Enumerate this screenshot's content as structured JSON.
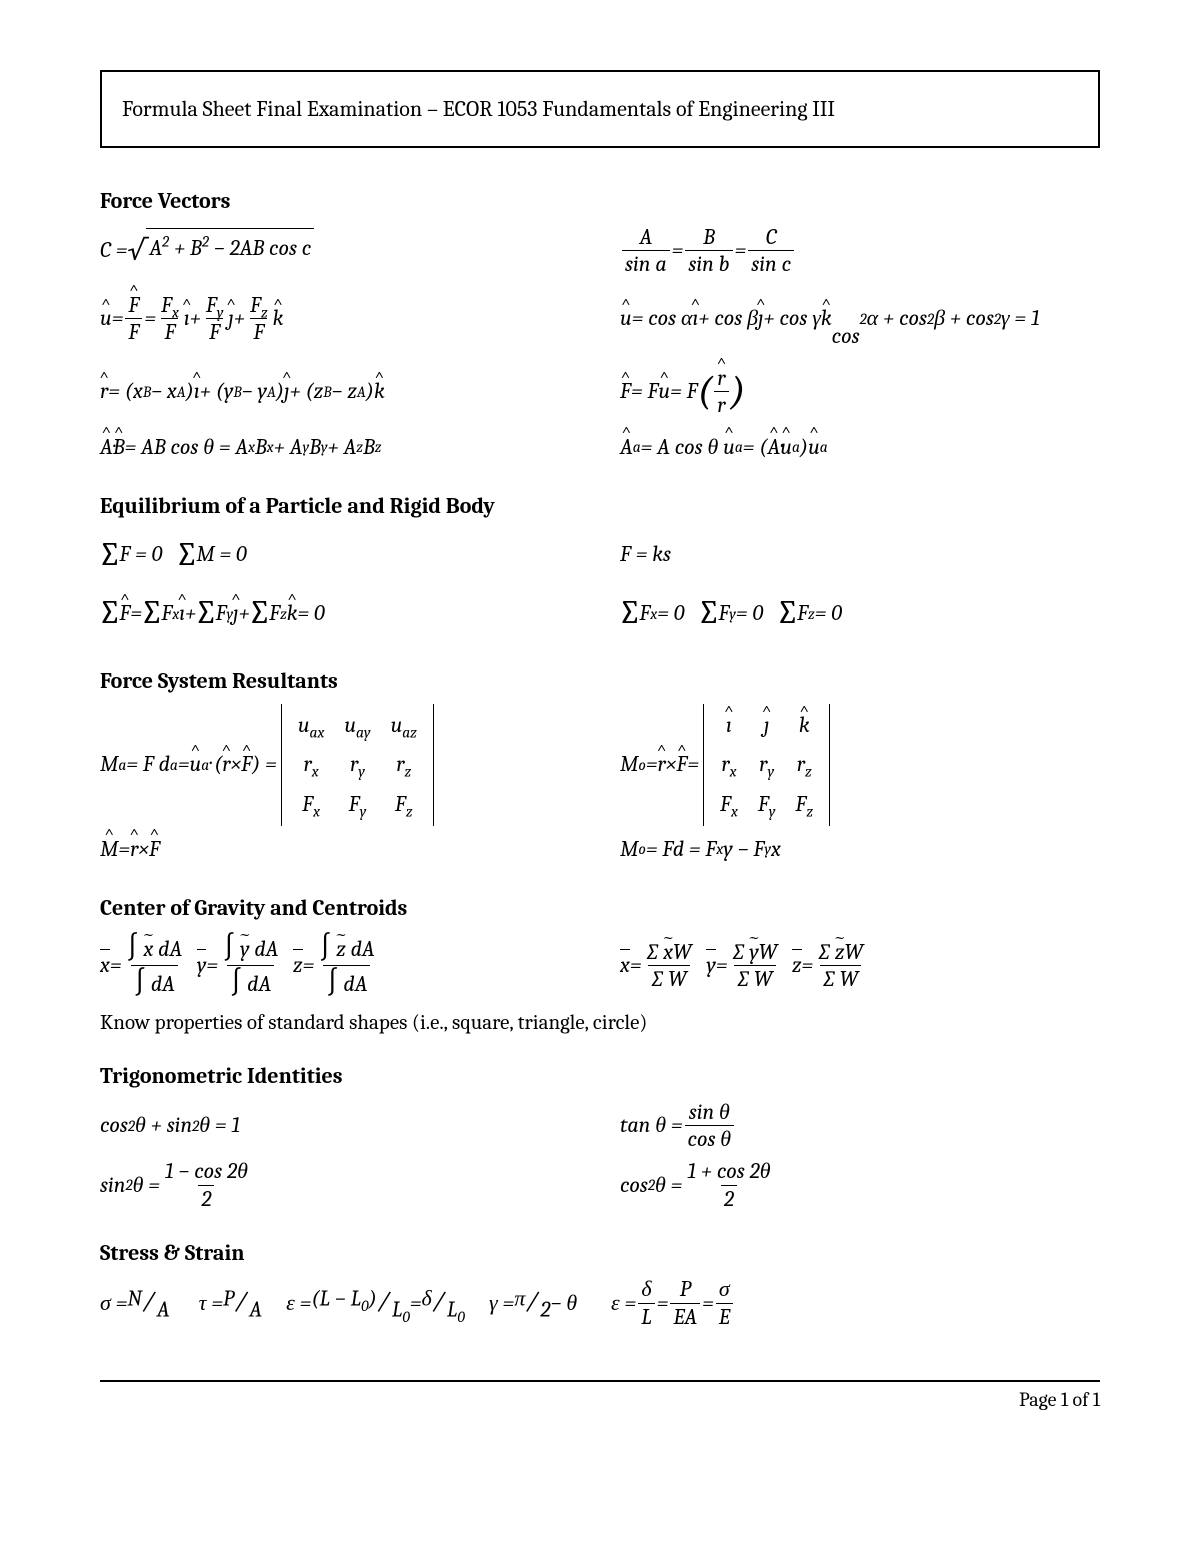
{
  "meta": {
    "background_color": "#ffffff",
    "text_color": "#000000",
    "font_family": "Cambria, Georgia, serif",
    "body_fontsize": 22,
    "heading_fontweight": "bold"
  },
  "title": "Formula Sheet Final Examination – ECOR 1053 Fundamentals of Engineering III",
  "page_footer": "Page 1 of 1",
  "sections": {
    "force_vectors": {
      "heading": "Force Vectors",
      "eq_cosine_law": "C = √(A² + B² − 2AB cos c)",
      "eq_sine_law": "A / sin a = B / sin b = C / sin c",
      "eq_unit_from_F": "û = F̂/F = (Fx/F) î + (Fy/F) ĵ + (Fz/F) k̂",
      "eq_direction_cosines": "û = cos α î + cos β ĵ + cos γ k̂",
      "eq_cos_sq_sum": "cos² α + cos² β + cos² γ = 1",
      "eq_position_vector": "r̂ = (xB − xA)î + (yB − yA)ĵ + (zB − zA)k̂",
      "eq_force_along_line": "F̂ = F û = F (r̂ / r)",
      "eq_dot_product": "Â · B̂ = AB cos θ = AxBx + AyBy + AzBz",
      "eq_projection": "Âa = A cos θ ûa = (Â · ûa) ûa"
    },
    "equilibrium": {
      "heading": "Equilibrium of a Particle and Rigid Body",
      "eq_sumF": "Σ F = 0",
      "eq_sumM": "Σ M = 0",
      "eq_spring": "F = ks",
      "eq_vector_sum_components": "Σ F̂ = Σ Fx î + Σ Fy ĵ + Σ Fz k̂ = 0",
      "eq_scalar_Fx": "Σ Fx = 0",
      "eq_scalar_Fy": "Σ Fy = 0",
      "eq_scalar_Fz": "Σ Fz = 0"
    },
    "force_system_resultants": {
      "heading": "Force System Resultants",
      "eq_Ma_scalar_triple": "Ma = F da = ûa · (r̂ × F̂) = |uax uay uaz; rx ry rz; Fx Fy Fz|",
      "eq_Mo_cross": "Mo = r̂ × F̂ = |î ĵ k̂; rx ry rz; Fx Fy Fz|",
      "eq_M_hat": "M̂ = r̂ × F̂",
      "eq_Mo_2d": "Mo = Fd = Fx y − Fy x"
    },
    "centroids": {
      "heading": "Center of Gravity and Centroids",
      "eq_xbar_int": "x̄ = ∫ x̃ dA / ∫ dA",
      "eq_ybar_int": "ȳ = ∫ ỹ dA / ∫ dA",
      "eq_zbar_int": "z̄ = ∫ z̃ dA / ∫ dA",
      "eq_xbar_sum": "x̄ = Σ x̃W / Σ W",
      "eq_ybar_sum": "ȳ = Σ ỹW / Σ W",
      "eq_zbar_sum": "z̄ = Σ z̃W / Σ W",
      "note": "Know properties of standard shapes (i.e., square, triangle, circle)"
    },
    "trig": {
      "heading": "Trigonometric Identities",
      "eq_pythag": "cos² θ + sin² θ = 1",
      "eq_tan": "tan θ = sin θ / cos θ",
      "eq_sin2": "sin² θ = (1 − cos 2θ) / 2",
      "eq_cos2": "cos² θ = (1 + cos 2θ) / 2"
    },
    "stress_strain": {
      "heading": "Stress & Strain",
      "eq_sigma": "σ = N / A",
      "eq_tau": "τ = P / A",
      "eq_eps_LL0": "ε = (L − L0) / L0 = δ / L0",
      "eq_gamma": "γ = π/2 − θ",
      "eq_eps_hooke": "ε = δ/L = P/(EA) = σ/E"
    }
  }
}
